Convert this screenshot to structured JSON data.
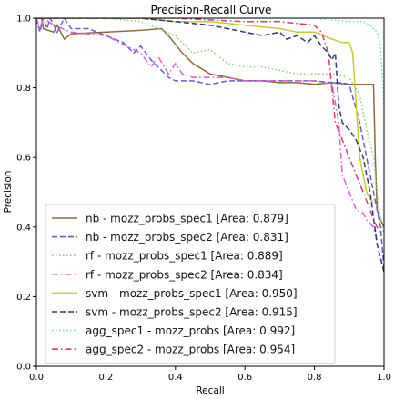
{
  "chart_data": {
    "type": "line",
    "title": "Precision-Recall Curve",
    "xlabel": "Recall",
    "ylabel": "Precision",
    "xlim": [
      0,
      1
    ],
    "ylim": [
      0,
      1
    ],
    "xticks": [
      "0.0",
      "0.2",
      "0.4",
      "0.6",
      "0.8",
      "1.0"
    ],
    "yticks": [
      "0.0",
      "0.2",
      "0.4",
      "0.6",
      "0.8",
      "1.0"
    ],
    "grid": false,
    "legend_position": "lower-left",
    "series": [
      {
        "name": "nb - mozz_probs_spec1 [Area: 0.879]",
        "color": "#8b6b3c",
        "dash": "solid",
        "x": [
          0.0,
          0.015,
          0.02,
          0.05,
          0.06,
          0.08,
          0.1,
          0.2,
          0.3,
          0.36,
          0.38,
          0.42,
          0.45,
          0.5,
          0.55,
          0.6,
          0.65,
          0.7,
          0.75,
          0.8,
          0.85,
          0.9,
          0.95,
          0.97,
          0.975,
          0.98,
          0.99,
          1.0
        ],
        "y": [
          1.0,
          1.0,
          0.97,
          0.96,
          0.98,
          0.94,
          0.955,
          0.96,
          0.965,
          0.97,
          0.95,
          0.9,
          0.87,
          0.84,
          0.83,
          0.82,
          0.82,
          0.815,
          0.815,
          0.81,
          0.815,
          0.81,
          0.81,
          0.81,
          0.6,
          0.45,
          0.42,
          0.4
        ]
      },
      {
        "name": "nb - mozz_probs_spec2 [Area: 0.831]",
        "color": "#6a5acd",
        "dash": "dashed",
        "x": [
          0.0,
          0.01,
          0.02,
          0.03,
          0.04,
          0.06,
          0.08,
          0.1,
          0.15,
          0.2,
          0.25,
          0.28,
          0.3,
          0.33,
          0.36,
          0.38,
          0.4,
          0.45,
          0.5,
          0.55,
          0.6,
          0.65,
          0.7,
          0.75,
          0.8,
          0.85,
          0.88,
          0.9,
          0.93,
          0.96,
          0.97,
          0.98,
          0.99,
          1.0
        ],
        "y": [
          1.0,
          0.96,
          1.0,
          0.97,
          1.0,
          0.96,
          1.0,
          0.97,
          0.97,
          0.95,
          0.93,
          0.9,
          0.92,
          0.88,
          0.85,
          0.83,
          0.82,
          0.82,
          0.81,
          0.82,
          0.82,
          0.82,
          0.82,
          0.82,
          0.82,
          0.815,
          0.815,
          0.81,
          0.7,
          0.55,
          0.5,
          0.45,
          0.4,
          0.28
        ]
      },
      {
        "name": "rf - mozz_probs_spec1 [Area: 0.889]",
        "color": "#7dd36e",
        "dash": "dotted",
        "x": [
          0.0,
          0.02,
          0.05,
          0.1,
          0.2,
          0.3,
          0.4,
          0.45,
          0.5,
          0.55,
          0.6,
          0.65,
          0.7,
          0.75,
          0.8,
          0.85,
          0.9,
          0.93,
          0.95,
          0.97,
          0.98,
          0.99,
          1.0
        ],
        "y": [
          1.0,
          1.0,
          1.0,
          1.0,
          1.0,
          0.99,
          0.95,
          0.9,
          0.91,
          0.87,
          0.86,
          0.86,
          0.85,
          0.84,
          0.84,
          0.84,
          0.83,
          0.78,
          0.68,
          0.6,
          0.5,
          0.42,
          0.38
        ]
      },
      {
        "name": "rf - mozz_probs_spec2 [Area: 0.834]",
        "color": "#d65fd2",
        "dash": "dashdot",
        "x": [
          0.0,
          0.01,
          0.02,
          0.05,
          0.1,
          0.2,
          0.3,
          0.33,
          0.35,
          0.38,
          0.4,
          0.42,
          0.45,
          0.5,
          0.55,
          0.6,
          0.65,
          0.7,
          0.75,
          0.8,
          0.85,
          0.87,
          0.88,
          0.9,
          0.92,
          0.94,
          0.95,
          0.97,
          0.98
        ],
        "y": [
          1.0,
          0.97,
          1.0,
          0.98,
          0.96,
          0.95,
          0.9,
          0.86,
          0.89,
          0.84,
          0.87,
          0.84,
          0.83,
          0.83,
          0.83,
          0.82,
          0.82,
          0.82,
          0.82,
          0.82,
          0.81,
          0.7,
          0.55,
          0.5,
          0.45,
          0.44,
          0.42,
          0.4,
          0.36
        ]
      },
      {
        "name": "svm - mozz_probs_spec1 [Area: 0.950]",
        "color": "#c9c932",
        "dash": "solid",
        "x": [
          0.0,
          0.05,
          0.1,
          0.2,
          0.3,
          0.4,
          0.5,
          0.6,
          0.7,
          0.75,
          0.8,
          0.85,
          0.88,
          0.9,
          0.91,
          0.92,
          0.93,
          0.94,
          0.95,
          0.96,
          0.97
        ],
        "y": [
          1.0,
          1.0,
          1.0,
          1.0,
          1.0,
          0.99,
          0.99,
          0.98,
          0.97,
          0.96,
          0.96,
          0.94,
          0.93,
          0.93,
          0.9,
          0.75,
          0.6,
          0.55,
          0.5,
          0.48,
          0.47
        ]
      },
      {
        "name": "svm - mozz_probs_spec2 [Area: 0.915]",
        "color": "#2e3a6e",
        "dash": "dashed",
        "x": [
          0.0,
          0.05,
          0.1,
          0.2,
          0.3,
          0.4,
          0.5,
          0.55,
          0.6,
          0.65,
          0.7,
          0.72,
          0.75,
          0.78,
          0.8,
          0.82,
          0.84,
          0.85,
          0.86,
          0.87,
          0.88,
          0.9,
          0.92,
          0.94,
          0.96,
          0.98,
          1.0
        ],
        "y": [
          1.0,
          1.0,
          1.0,
          1.0,
          1.0,
          0.99,
          0.98,
          0.97,
          0.96,
          0.95,
          0.96,
          0.94,
          0.95,
          0.93,
          0.95,
          0.92,
          0.9,
          0.88,
          0.9,
          0.75,
          0.7,
          0.68,
          0.65,
          0.6,
          0.5,
          0.35,
          0.27
        ]
      },
      {
        "name": "agg_spec1 - mozz_probs [Area: 0.992]",
        "color": "#6fe0b6",
        "dash": "dotted",
        "x": [
          0.0,
          0.2,
          0.4,
          0.6,
          0.8,
          0.9,
          0.94,
          0.96,
          0.98,
          0.99,
          1.0
        ],
        "y": [
          1.0,
          1.0,
          1.0,
          1.0,
          1.0,
          0.99,
          0.99,
          0.98,
          0.96,
          0.92,
          0.75
        ]
      },
      {
        "name": "agg_spec2 - mozz_probs [Area: 0.954]",
        "color": "#d63a6b",
        "dash": "dashdot",
        "x": [
          0.0,
          0.2,
          0.4,
          0.6,
          0.7,
          0.8,
          0.82,
          0.84,
          0.86,
          0.88,
          0.9,
          0.92,
          0.94,
          0.96,
          0.97,
          0.98,
          0.99
        ],
        "y": [
          1.0,
          1.0,
          1.0,
          0.99,
          0.99,
          0.98,
          0.96,
          0.9,
          0.7,
          0.65,
          0.6,
          0.55,
          0.5,
          0.45,
          0.42,
          0.4,
          0.38
        ]
      }
    ]
  }
}
